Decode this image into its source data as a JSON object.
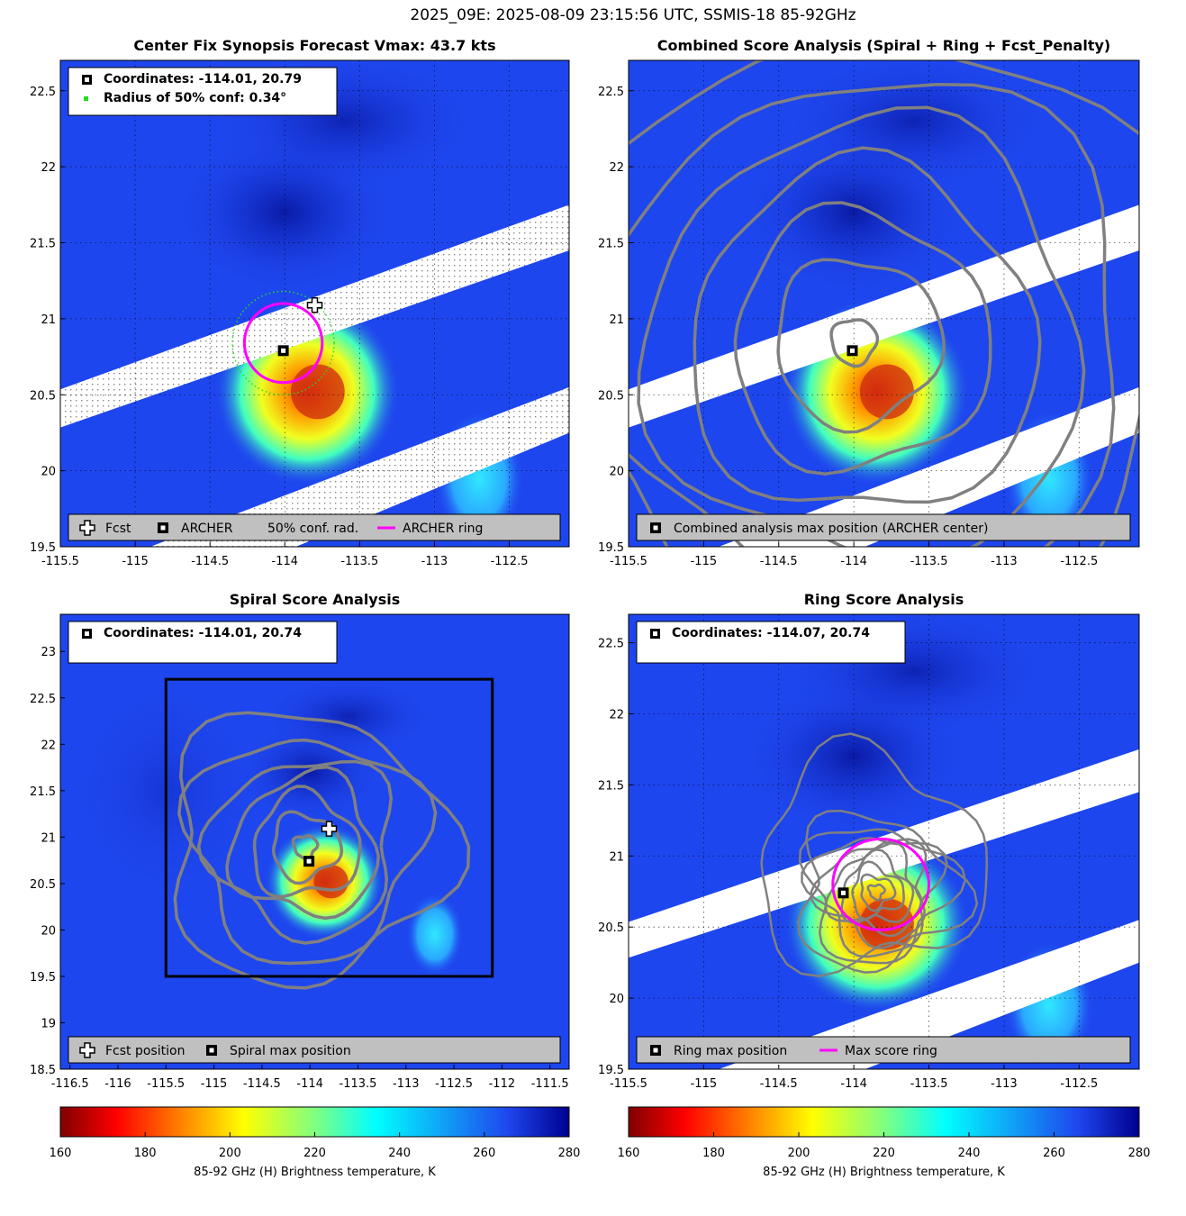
{
  "figure": {
    "title": "2025_09E: 2025-08-09 23:15:56 UTC, SSMIS-18 85-92GHz"
  },
  "colors": {
    "ocean_blue": "#1e46ee",
    "deep_blue": "#0a1aa6",
    "swath_gap": "#ffffff",
    "contour_gray": "#808080",
    "ring_magenta": "#ff00ff",
    "conf_green": "#22dd22",
    "legend_bg": "#c0c0c0"
  },
  "chart_data": [
    {
      "type": "heatmap",
      "title": "Center Fix Synopsis     Forecast Vmax: 43.7 kts",
      "xlim": [
        -115.5,
        -112.1
      ],
      "ylim": [
        19.5,
        22.7
      ],
      "xticks": [
        -115.5,
        -115,
        -114.5,
        -114,
        -113.5,
        -113,
        -112.5
      ],
      "yticks": [
        19.5,
        20,
        20.5,
        21,
        21.5,
        22,
        22.5
      ],
      "grid": true,
      "info_box": [
        "Coordinates: -114.01, 20.79",
        "Radius of 50% conf: 0.34°"
      ],
      "legend": [
        "Fcst",
        "ARCHER",
        "50% conf. rad.",
        "ARCHER ring"
      ],
      "legend_placement": "bottom",
      "fcst": [
        -113.8,
        21.09
      ],
      "archer_center": [
        -114.01,
        20.79
      ],
      "ring_radius_deg": 0.26,
      "conf_radius_deg": 0.34
    },
    {
      "type": "heatmap",
      "title": "Combined Score Analysis (Spiral + Ring + Fcst_Penalty)",
      "xlim": [
        -115.5,
        -112.1
      ],
      "ylim": [
        19.5,
        22.7
      ],
      "xticks": [
        -115.5,
        -115,
        -114.5,
        -114,
        -113.5,
        -113,
        -112.5
      ],
      "yticks": [
        19.5,
        20,
        20.5,
        21,
        21.5,
        22,
        22.5
      ],
      "grid": true,
      "legend": [
        "Combined analysis max position (ARCHER center)"
      ],
      "legend_placement": "bottom",
      "archer_center": [
        -114.01,
        20.79
      ]
    },
    {
      "type": "heatmap",
      "title": "Spiral Score Analysis",
      "xlim": [
        -116.6,
        -111.3
      ],
      "ylim": [
        18.5,
        23.4
      ],
      "xticks": [
        -116.5,
        -116,
        -115.5,
        -115,
        -114.5,
        -114,
        -113.5,
        -113,
        -112.5,
        -112,
        -111.5
      ],
      "yticks": [
        18.5,
        19,
        19.5,
        20,
        20.5,
        21,
        21.5,
        22,
        22.5,
        23
      ],
      "grid": false,
      "info_box": [
        "Coordinates: -114.01, 20.74"
      ],
      "legend": [
        "Fcst position",
        "Spiral max position"
      ],
      "legend_placement": "bottom",
      "fcst": [
        -113.8,
        21.09
      ],
      "spiral_max": [
        -114.01,
        20.74
      ],
      "search_box": [
        -115.5,
        19.5,
        -112.1,
        22.7
      ]
    },
    {
      "type": "heatmap",
      "title": "Ring Score Analysis",
      "xlim": [
        -115.5,
        -112.1
      ],
      "ylim": [
        19.5,
        22.7
      ],
      "xticks": [
        -115.5,
        -115,
        -114.5,
        -114,
        -113.5,
        -113,
        -112.5
      ],
      "yticks": [
        19.5,
        20,
        20.5,
        21,
        21.5,
        22,
        22.5
      ],
      "grid": true,
      "info_box": [
        "Coordinates: -114.07, 20.74"
      ],
      "legend": [
        "Ring max position",
        "Max score ring"
      ],
      "legend_placement": "bottom",
      "ring_max": [
        -114.07,
        20.74
      ],
      "ring_radius_deg": 0.32
    }
  ],
  "colorbar": {
    "label": "85-92 GHz (H) Brightness temperature, K",
    "min": 160,
    "max": 280,
    "ticks": [
      160,
      180,
      200,
      220,
      240,
      260,
      280
    ]
  }
}
